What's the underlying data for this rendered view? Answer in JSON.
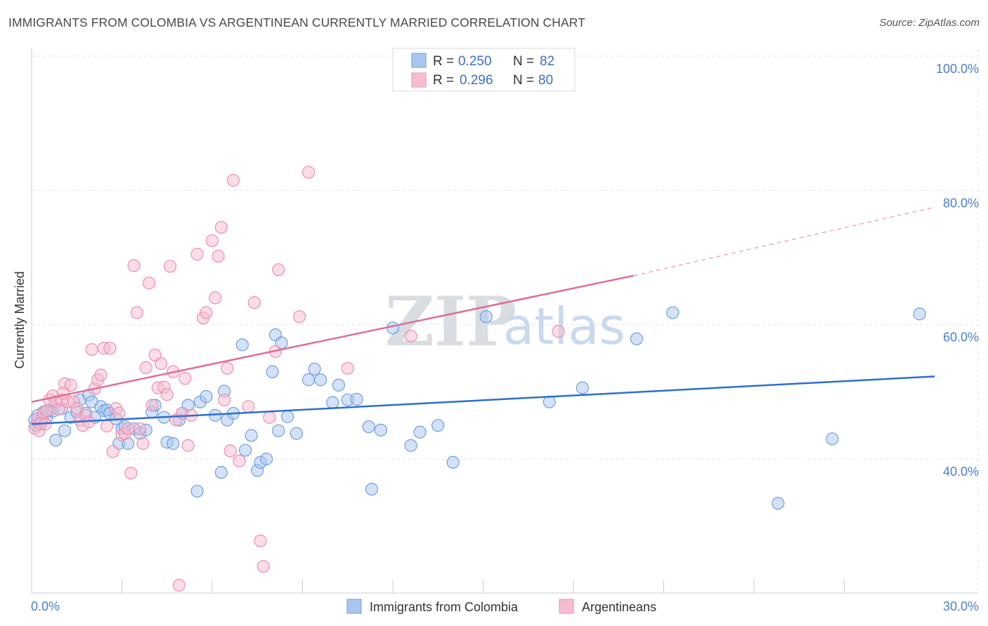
{
  "title": "IMMIGRANTS FROM COLOMBIA VS ARGENTINEAN CURRENTLY MARRIED CORRELATION CHART",
  "source": "Source: ZipAtlas.com",
  "colors": {
    "blue_fill": "#a9c6f0",
    "blue_stroke": "#6f9fe0",
    "blue_line": "#2c6fd0",
    "pink_fill": "#f6bcd0",
    "pink_stroke": "#ec8fae",
    "pink_line": "#e06b95",
    "grid": "#dfe3e8",
    "axis_text": "#4a7fd0"
  },
  "chart_data": {
    "type": "scatter",
    "title": "IMMIGRANTS FROM COLOMBIA VS ARGENTINEAN CURRENTLY MARRIED CORRELATION CHART",
    "xlabel": "",
    "ylabel": "Currently Married",
    "xlim": [
      0,
      30
    ],
    "ylim": [
      20,
      102
    ],
    "x_tick_labels": [
      {
        "value": 0,
        "label": "0.0%"
      },
      {
        "value": 30,
        "label": "30.0%"
      }
    ],
    "y_tick_labels": [
      {
        "value": 40,
        "label": "40.0%"
      },
      {
        "value": 60,
        "label": "60.0%"
      },
      {
        "value": 80,
        "label": "80.0%"
      },
      {
        "value": 100,
        "label": "100.0%"
      }
    ],
    "x_minor_ticks": [
      3,
      6,
      9,
      12,
      15,
      18,
      21,
      24,
      27
    ],
    "legend": {
      "r_label": "R =",
      "n_label": "N =",
      "entries": [
        {
          "r": "0.250",
          "n": "82"
        },
        {
          "r": "0.296",
          "n": "80"
        }
      ]
    },
    "series": [
      {
        "name": "Immigrants from Colombia",
        "color": "blue",
        "trend": {
          "x0": 0,
          "y0": 45.2,
          "x1": 30,
          "y1": 52.3,
          "dashed_from": null
        },
        "points": [
          [
            0.1,
            45.8
          ],
          [
            0.2,
            46.5
          ],
          [
            0.3,
            45.2
          ],
          [
            0.4,
            47.0
          ],
          [
            0.5,
            46.2
          ],
          [
            0.6,
            47.3
          ],
          [
            0.7,
            47.1
          ],
          [
            0.8,
            42.8
          ],
          [
            1.0,
            47.5
          ],
          [
            1.1,
            44.2
          ],
          [
            1.3,
            46.2
          ],
          [
            1.5,
            47.0
          ],
          [
            1.6,
            48.8
          ],
          [
            1.8,
            46.8
          ],
          [
            1.9,
            49.5
          ],
          [
            2.0,
            48.5
          ],
          [
            2.1,
            46.2
          ],
          [
            2.3,
            47.8
          ],
          [
            2.4,
            47.2
          ],
          [
            2.5,
            47.3
          ],
          [
            2.6,
            46.8
          ],
          [
            2.8,
            46.0
          ],
          [
            2.9,
            42.3
          ],
          [
            3.0,
            44.5
          ],
          [
            3.1,
            44.8
          ],
          [
            3.2,
            42.3
          ],
          [
            3.4,
            44.5
          ],
          [
            3.6,
            43.8
          ],
          [
            3.8,
            44.3
          ],
          [
            4.0,
            47.0
          ],
          [
            4.1,
            48.0
          ],
          [
            4.4,
            46.2
          ],
          [
            4.5,
            42.5
          ],
          [
            4.7,
            42.3
          ],
          [
            4.9,
            45.8
          ],
          [
            5.0,
            46.8
          ],
          [
            5.2,
            48.0
          ],
          [
            5.5,
            35.2
          ],
          [
            5.6,
            48.5
          ],
          [
            5.8,
            49.3
          ],
          [
            6.1,
            46.5
          ],
          [
            6.3,
            38.0
          ],
          [
            6.4,
            50.1
          ],
          [
            6.5,
            45.8
          ],
          [
            6.7,
            46.8
          ],
          [
            7.0,
            57.0
          ],
          [
            7.1,
            41.3
          ],
          [
            7.3,
            43.5
          ],
          [
            7.5,
            38.3
          ],
          [
            7.6,
            39.5
          ],
          [
            7.8,
            40.0
          ],
          [
            8.0,
            53.0
          ],
          [
            8.1,
            58.5
          ],
          [
            8.2,
            44.2
          ],
          [
            8.3,
            57.3
          ],
          [
            8.5,
            46.3
          ],
          [
            8.8,
            43.8
          ],
          [
            9.2,
            51.8
          ],
          [
            9.4,
            53.4
          ],
          [
            9.6,
            51.8
          ],
          [
            10.0,
            48.4
          ],
          [
            10.2,
            51.0
          ],
          [
            10.5,
            48.8
          ],
          [
            10.8,
            48.9
          ],
          [
            11.2,
            44.8
          ],
          [
            11.3,
            35.5
          ],
          [
            11.6,
            44.3
          ],
          [
            12.0,
            59.5
          ],
          [
            12.6,
            42.0
          ],
          [
            12.9,
            44.0
          ],
          [
            13.5,
            45.0
          ],
          [
            14.0,
            39.5
          ],
          [
            15.1,
            61.2
          ],
          [
            17.2,
            48.5
          ],
          [
            18.3,
            50.6
          ],
          [
            20.1,
            57.9
          ],
          [
            21.3,
            61.8
          ],
          [
            24.8,
            33.4
          ],
          [
            26.6,
            43.0
          ],
          [
            29.5,
            61.6
          ],
          [
            0.15,
            45.0
          ],
          [
            0.35,
            46.0
          ]
        ]
      },
      {
        "name": "Argentineans",
        "color": "pink",
        "trend": {
          "x0": 0,
          "y0": 48.5,
          "x1": 20,
          "y1": 67.3,
          "dashed_to_x": 30,
          "dashed_to_y": 77.5
        },
        "points": [
          [
            0.1,
            44.6
          ],
          [
            0.2,
            46.0
          ],
          [
            0.3,
            45.3
          ],
          [
            0.4,
            46.8
          ],
          [
            0.5,
            47.2
          ],
          [
            0.6,
            48.8
          ],
          [
            0.7,
            49.4
          ],
          [
            0.8,
            48.5
          ],
          [
            0.9,
            47.4
          ],
          [
            1.0,
            48.8
          ],
          [
            1.1,
            51.2
          ],
          [
            1.2,
            48.5
          ],
          [
            1.3,
            51.0
          ],
          [
            1.4,
            48.5
          ],
          [
            1.5,
            47.5
          ],
          [
            1.6,
            45.8
          ],
          [
            1.7,
            45.0
          ],
          [
            1.8,
            46.5
          ],
          [
            1.9,
            45.5
          ],
          [
            2.0,
            56.3
          ],
          [
            2.1,
            50.5
          ],
          [
            2.2,
            51.8
          ],
          [
            2.3,
            52.5
          ],
          [
            2.4,
            56.5
          ],
          [
            2.5,
            44.9
          ],
          [
            2.6,
            56.5
          ],
          [
            2.7,
            41.1
          ],
          [
            2.8,
            47.5
          ],
          [
            2.9,
            46.8
          ],
          [
            3.0,
            43.6
          ],
          [
            3.1,
            43.8
          ],
          [
            3.2,
            44.5
          ],
          [
            3.3,
            37.9
          ],
          [
            3.4,
            68.8
          ],
          [
            3.5,
            61.8
          ],
          [
            3.6,
            44.5
          ],
          [
            3.7,
            42.3
          ],
          [
            3.8,
            53.6
          ],
          [
            3.9,
            66.2
          ],
          [
            4.0,
            48.0
          ],
          [
            4.1,
            55.5
          ],
          [
            4.2,
            50.6
          ],
          [
            4.3,
            54.2
          ],
          [
            4.4,
            50.7
          ],
          [
            4.5,
            49.6
          ],
          [
            4.6,
            68.7
          ],
          [
            4.7,
            53.0
          ],
          [
            4.8,
            45.8
          ],
          [
            4.9,
            21.2
          ],
          [
            5.0,
            46.8
          ],
          [
            5.1,
            52.0
          ],
          [
            5.2,
            42.0
          ],
          [
            5.3,
            46.5
          ],
          [
            5.5,
            70.5
          ],
          [
            5.7,
            61.0
          ],
          [
            5.8,
            61.8
          ],
          [
            6.0,
            72.5
          ],
          [
            6.1,
            64.0
          ],
          [
            6.2,
            70.2
          ],
          [
            6.3,
            74.5
          ],
          [
            6.4,
            48.8
          ],
          [
            6.5,
            53.5
          ],
          [
            6.6,
            41.2
          ],
          [
            6.7,
            81.5
          ],
          [
            6.9,
            39.7
          ],
          [
            7.2,
            47.8
          ],
          [
            7.4,
            63.3
          ],
          [
            7.6,
            27.8
          ],
          [
            7.7,
            24.0
          ],
          [
            7.9,
            46.2
          ],
          [
            8.1,
            56.0
          ],
          [
            8.2,
            68.2
          ],
          [
            8.9,
            61.2
          ],
          [
            9.2,
            82.7
          ],
          [
            10.5,
            53.5
          ],
          [
            12.6,
            58.3
          ],
          [
            17.5,
            59.0
          ],
          [
            0.25,
            44.2
          ],
          [
            0.45,
            45.2
          ],
          [
            1.05,
            49.8
          ]
        ]
      }
    ]
  },
  "bottom_legend": [
    {
      "label": "Immigrants from Colombia",
      "color": "blue"
    },
    {
      "label": "Argentineans",
      "color": "pink"
    }
  ],
  "watermark": {
    "zip": "ZIP",
    "atlas": "atlas"
  }
}
